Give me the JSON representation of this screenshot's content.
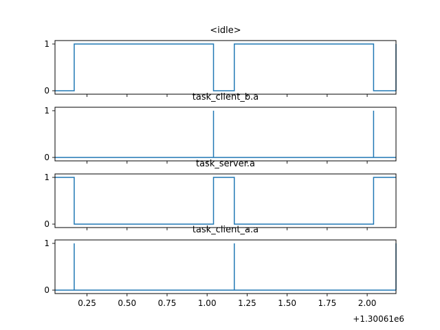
{
  "chart_data": [
    {
      "type": "line",
      "step": "post",
      "title": "<idle>",
      "x": [
        0.05,
        0.17,
        0.17,
        1.04,
        1.04,
        1.17,
        1.17,
        2.04,
        2.04,
        2.18
      ],
      "y": [
        0,
        0,
        1,
        1,
        0,
        0,
        1,
        1,
        0,
        0
      ],
      "end_spike": true,
      "xlim": [
        0.05,
        2.18
      ],
      "ylim": [
        0,
        1
      ],
      "yticks": [
        0,
        1
      ]
    },
    {
      "type": "line",
      "title": "task_client_b.a",
      "x": [
        0.05,
        1.04,
        1.04,
        1.04,
        2.04,
        2.04,
        2.04,
        2.18
      ],
      "y": [
        0,
        0,
        1,
        0,
        0,
        1,
        0,
        0
      ],
      "xlim": [
        0.05,
        2.18
      ],
      "ylim": [
        0,
        1
      ],
      "yticks": [
        0,
        1
      ]
    },
    {
      "type": "line",
      "step": "post",
      "title": "task_server.a",
      "x": [
        0.05,
        0.17,
        0.17,
        1.04,
        1.04,
        1.17,
        1.17,
        2.04,
        2.04,
        2.18
      ],
      "y": [
        1,
        1,
        0,
        0,
        1,
        1,
        0,
        0,
        1,
        1
      ],
      "xlim": [
        0.05,
        2.18
      ],
      "ylim": [
        0,
        1
      ],
      "yticks": [
        0,
        1
      ]
    },
    {
      "type": "line",
      "title": "task_client_a.a",
      "x": [
        0.05,
        0.17,
        0.17,
        0.17,
        1.17,
        1.17,
        1.17,
        2.18
      ],
      "y": [
        0,
        0,
        1,
        0,
        0,
        1,
        0,
        0
      ],
      "end_spike": true,
      "xlim": [
        0.05,
        2.18
      ],
      "ylim": [
        0,
        1
      ],
      "yticks": [
        0,
        1
      ],
      "xticks": [
        "0.25",
        "0.50",
        "0.75",
        "1.00",
        "1.25",
        "1.50",
        "1.75",
        "2.00"
      ],
      "x_offset_label": "+1.30061e6"
    }
  ],
  "colors": {
    "series": "#1f77b4",
    "axes": "#000000",
    "background": "#ffffff"
  }
}
